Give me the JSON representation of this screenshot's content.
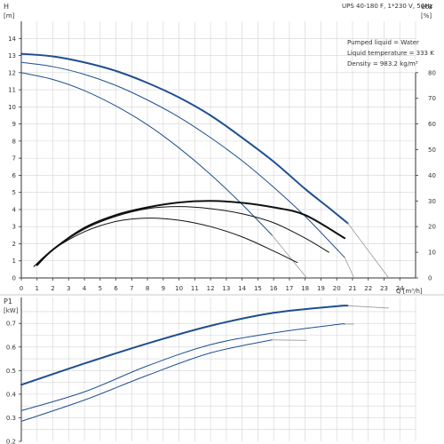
{
  "colors": {
    "grid": "#d4d4d4",
    "axis": "#333333",
    "curve_blue": "#1f4f8f",
    "curve_black": "#111111",
    "curve_grey": "#9a9a9a"
  },
  "legend": {
    "title": "UPS 40-180 F, 1*230 V, 50Hz",
    "lines": [
      "Pumped liquid = Water",
      "Liquid temperature = 333 K",
      "Density = 983.2 kg/m³"
    ]
  },
  "chart_data": [
    {
      "type": "line",
      "name": "head-efficiency",
      "ylabel_lines": [
        "H",
        "[m]"
      ],
      "y2label_lines": [
        "eta",
        "[%]"
      ],
      "xlabel": "Q [m³/h]",
      "xlim": [
        0,
        25
      ],
      "ylim": [
        0,
        15
      ],
      "y2lim": [
        0,
        100
      ],
      "x_ticks": [
        0,
        1,
        2,
        3,
        4,
        5,
        6,
        7,
        8,
        9,
        10,
        11,
        12,
        13,
        14,
        15,
        16,
        17,
        18,
        19,
        20,
        21,
        22,
        23,
        24
      ],
      "y_ticks": [
        0,
        1,
        2,
        3,
        4,
        5,
        6,
        7,
        8,
        9,
        10,
        11,
        12,
        13,
        14
      ],
      "y2_ticks": [
        0,
        10,
        20,
        30,
        40,
        50,
        60,
        70,
        80
      ],
      "grid": true,
      "head_series": [
        {
          "id": "h1",
          "x": [
            0,
            2,
            4,
            6,
            8,
            10,
            12,
            14,
            16,
            18,
            19.5,
            20.7
          ],
          "y": [
            13.1,
            12.95,
            12.6,
            12.1,
            11.4,
            10.55,
            9.5,
            8.2,
            6.8,
            5.2,
            4.1,
            3.2
          ],
          "style": "thick-blue",
          "tail": [
            [
              20.7,
              3.2
            ],
            [
              23.3,
              0
            ]
          ]
        },
        {
          "id": "h2",
          "x": [
            0,
            2,
            4,
            6,
            8,
            10,
            12,
            14,
            16,
            18,
            20.5
          ],
          "y": [
            12.6,
            12.35,
            11.9,
            11.25,
            10.4,
            9.4,
            8.2,
            6.85,
            5.3,
            3.6,
            1.2
          ],
          "style": "blue",
          "tail": [
            [
              20.5,
              1.2
            ],
            [
              21.1,
              0
            ]
          ]
        },
        {
          "id": "h3",
          "x": [
            0,
            2,
            4,
            6,
            8,
            10,
            12,
            14,
            15.9
          ],
          "y": [
            12.0,
            11.6,
            10.95,
            10.05,
            8.95,
            7.6,
            6.05,
            4.3,
            2.5
          ],
          "style": "blue",
          "tail": [
            [
              15.9,
              2.5
            ],
            [
              18.1,
              0
            ]
          ]
        }
      ],
      "eta_series": [
        {
          "id": "e1",
          "x": [
            1,
            2,
            4,
            6,
            8,
            10,
            12,
            14,
            16,
            18,
            20.5
          ],
          "y": [
            5,
            11,
            19.5,
            24.5,
            27.5,
            29.4,
            30,
            29.3,
            27.5,
            24.5,
            15.5
          ],
          "style": "thick-black"
        },
        {
          "id": "e2",
          "x": [
            0.8,
            2,
            4,
            6,
            8,
            10,
            12,
            14,
            16,
            18,
            19.5
          ],
          "y": [
            4.5,
            11,
            19,
            24,
            27,
            27.8,
            27,
            25,
            21.5,
            15.5,
            10
          ],
          "style": "black"
        },
        {
          "id": "e3",
          "x": [
            0.8,
            2,
            4,
            6,
            8,
            10,
            12,
            14,
            16,
            17.5
          ],
          "y": [
            4.5,
            11,
            18,
            22,
            23.3,
            22.5,
            20,
            16,
            10.5,
            6
          ],
          "style": "black"
        }
      ]
    },
    {
      "type": "line",
      "name": "power",
      "ylabel_lines": [
        "P1",
        "[kW]"
      ],
      "xlim": [
        0,
        25
      ],
      "ylim": [
        0.2,
        0.81
      ],
      "y_ticks": [
        0.2,
        0.3,
        0.4,
        0.5,
        0.6,
        0.7
      ],
      "grid": true,
      "series": [
        {
          "id": "p1",
          "x": [
            0,
            4,
            8,
            12,
            16,
            20,
            20.7
          ],
          "y": [
            0.44,
            0.53,
            0.615,
            0.69,
            0.745,
            0.773,
            0.775
          ],
          "style": "thick-blue",
          "tail": [
            [
              20.7,
              0.775
            ],
            [
              23.3,
              0.765
            ]
          ]
        },
        {
          "id": "p2",
          "x": [
            0,
            4,
            8,
            12,
            16,
            20,
            20.5
          ],
          "y": [
            0.33,
            0.41,
            0.52,
            0.61,
            0.66,
            0.695,
            0.697
          ],
          "style": "blue",
          "tail": [
            [
              20.5,
              0.697
            ],
            [
              21.1,
              0.697
            ]
          ]
        },
        {
          "id": "p3",
          "x": [
            0,
            4,
            8,
            12,
            15.9
          ],
          "y": [
            0.285,
            0.375,
            0.48,
            0.575,
            0.63
          ],
          "style": "blue",
          "tail": [
            [
              15.9,
              0.63
            ],
            [
              18.1,
              0.628
            ]
          ]
        }
      ]
    }
  ]
}
